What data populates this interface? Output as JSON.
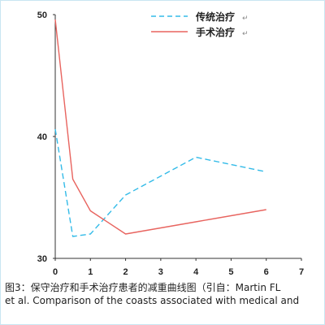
{
  "chart_data": {
    "type": "line",
    "title": "",
    "xlabel": "",
    "ylabel": "",
    "xlim": [
      0,
      7
    ],
    "ylim": [
      30,
      50
    ],
    "x_ticks": [
      "0",
      "1",
      "2",
      "3",
      "4",
      "5",
      "6",
      "7"
    ],
    "y_ticks": [
      "30",
      "40",
      "50"
    ],
    "grid": false,
    "legend_position": "top-right",
    "series": [
      {
        "name": "传统治疗",
        "color": "#33bbe8",
        "style": "dashed",
        "points": [
          [
            0,
            40.6
          ],
          [
            0.5,
            31.8
          ],
          [
            1,
            32.0
          ],
          [
            2,
            35.2
          ],
          [
            4,
            38.3
          ],
          [
            6,
            37.1
          ]
        ]
      },
      {
        "name": "手术治疗",
        "color": "#e8645f",
        "style": "solid",
        "points": [
          [
            0,
            49.6
          ],
          [
            0.5,
            36.5
          ],
          [
            1,
            33.9
          ],
          [
            2,
            32.0
          ],
          [
            4,
            33.0
          ],
          [
            6,
            34.0
          ]
        ]
      }
    ]
  },
  "legend": {
    "items": [
      {
        "label": "传统治疗",
        "mark": "↵"
      },
      {
        "label": "手术治疗",
        "mark": "↵"
      }
    ]
  },
  "caption": {
    "line1": "图3：保守治疗和手术治疗患者的减重曲线图（引自：Martin FL",
    "line2": "et al. Comparison of the coasts associated with medical and"
  }
}
